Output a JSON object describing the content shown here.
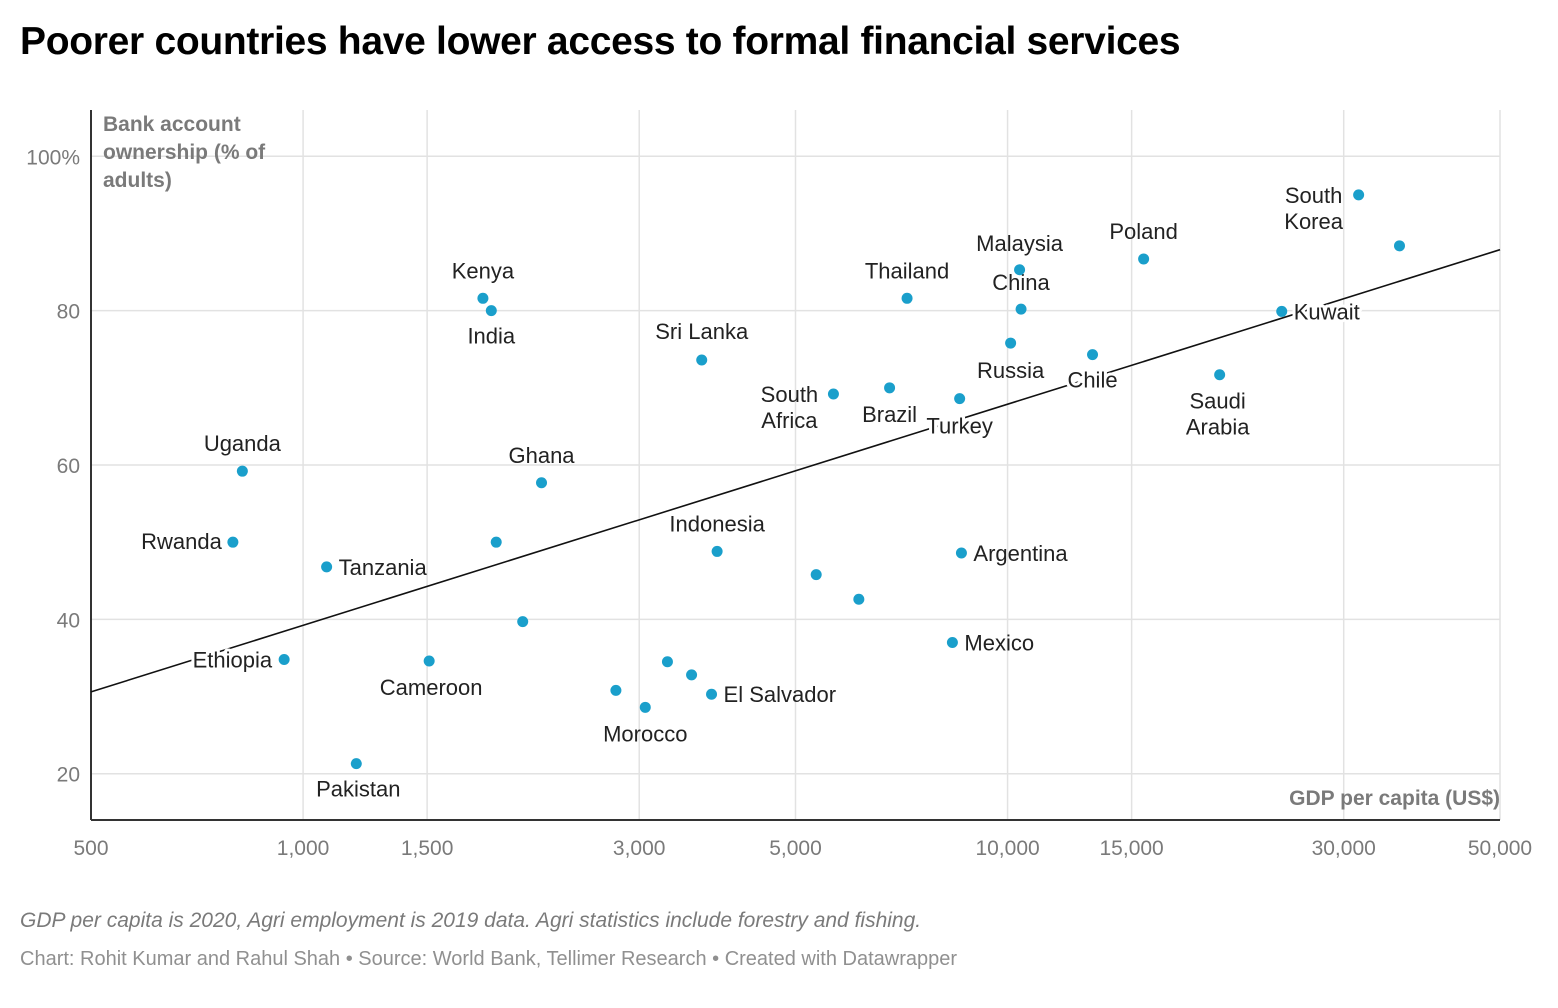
{
  "title": "Poorer countries have lower access to formal financial services",
  "note": "GDP per capita is 2020, Agri employment is 2019 data. Agri statistics include forestry and fishing.",
  "credit": "Chart: Rohit Kumar and Rahul Shah • Source: World Bank, Tellimer Research • Created with Datawrapper",
  "chart_data": {
    "type": "scatter",
    "x_scale": "log",
    "xlabel": "GDP per capita (US$)",
    "ylabel_lines": [
      "Bank account",
      "ownership (% of",
      "adults)"
    ],
    "xlim": [
      500,
      50000
    ],
    "ylim": [
      14,
      106
    ],
    "x_ticks": [
      500,
      1000,
      1500,
      3000,
      5000,
      10000,
      15000,
      30000,
      50000
    ],
    "x_tick_labels": [
      "500",
      "1,000",
      "1,500",
      "3,000",
      "5,000",
      "10,000",
      "15,000",
      "30,000",
      "50,000"
    ],
    "y_ticks": [
      20,
      40,
      60,
      80,
      100
    ],
    "y_tick_labels": [
      "20",
      "40",
      "60",
      "80",
      "100%"
    ],
    "grid": true,
    "point_color": "#1a9fcb",
    "trendline": {
      "x": [
        500,
        50000
      ],
      "y": [
        30.6,
        87.9
      ]
    },
    "points": [
      {
        "label": "Kenya",
        "x": 1800,
        "y": 81.6
      },
      {
        "label": "India",
        "x": 1850,
        "y": 80.0
      },
      {
        "label": "Uganda",
        "x": 820,
        "y": 59.2
      },
      {
        "label": "Rwanda",
        "x": 795,
        "y": 50.0
      },
      {
        "label": "Tanzania",
        "x": 1080,
        "y": 46.8
      },
      {
        "label": "Ethiopia",
        "x": 940,
        "y": 34.8
      },
      {
        "label": "Pakistan",
        "x": 1190,
        "y": 21.3
      },
      {
        "label": "Cameroon",
        "x": 1510,
        "y": 34.6
      },
      {
        "label": "Ghana",
        "x": 2180,
        "y": 57.7
      },
      {
        "label": "",
        "x": 1880,
        "y": 50.0
      },
      {
        "label": "",
        "x": 2050,
        "y": 39.7
      },
      {
        "label": "Sri Lanka",
        "x": 3680,
        "y": 73.6
      },
      {
        "label": "Indonesia",
        "x": 3870,
        "y": 48.8
      },
      {
        "label": "",
        "x": 2780,
        "y": 30.8
      },
      {
        "label": "Morocco",
        "x": 3060,
        "y": 28.6
      },
      {
        "label": "",
        "x": 3290,
        "y": 34.5
      },
      {
        "label": "",
        "x": 3560,
        "y": 32.8
      },
      {
        "label": "El Salvador",
        "x": 3800,
        "y": 30.3
      },
      {
        "label": "South Africa",
        "x": 5660,
        "y": 69.2
      },
      {
        "label": "",
        "x": 5350,
        "y": 45.8
      },
      {
        "label": "",
        "x": 6150,
        "y": 42.6
      },
      {
        "label": "Brazil",
        "x": 6800,
        "y": 70.0
      },
      {
        "label": "Thailand",
        "x": 7200,
        "y": 81.6
      },
      {
        "label": "Turkey",
        "x": 8550,
        "y": 68.6
      },
      {
        "label": "Argentina",
        "x": 8600,
        "y": 48.6
      },
      {
        "label": "Mexico",
        "x": 8350,
        "y": 37.0
      },
      {
        "label": "Malaysia",
        "x": 10400,
        "y": 85.3
      },
      {
        "label": "China",
        "x": 10450,
        "y": 80.2
      },
      {
        "label": "Russia",
        "x": 10100,
        "y": 75.8
      },
      {
        "label": "Chile",
        "x": 13200,
        "y": 74.3
      },
      {
        "label": "Poland",
        "x": 15600,
        "y": 86.7
      },
      {
        "label": "Saudi Arabia",
        "x": 20000,
        "y": 71.7
      },
      {
        "label": "Kuwait",
        "x": 24500,
        "y": 79.9
      },
      {
        "label": "South Korea",
        "x": 31500,
        "y": 95.0
      },
      {
        "label": "",
        "x": 36000,
        "y": 88.4
      }
    ]
  }
}
